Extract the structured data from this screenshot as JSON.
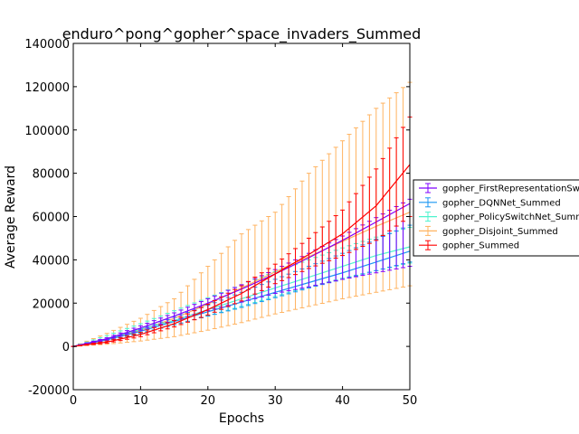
{
  "chart_data": {
    "type": "line",
    "title": "enduro^pong^gopher^space_invaders_Summed",
    "xlabel": "Epochs",
    "ylabel": "Average Reward",
    "xlim": [
      0,
      50
    ],
    "ylim": [
      -20000,
      140000
    ],
    "xticks": [
      0,
      10,
      20,
      30,
      40,
      50
    ],
    "yticks": [
      -20000,
      0,
      20000,
      40000,
      60000,
      80000,
      100000,
      120000,
      140000
    ],
    "grid": false,
    "legend_position": "right-outside",
    "series": [
      {
        "name": "gopher_FirstRepresentationSwitch_Summed",
        "color": "#8000ff",
        "x": [
          0,
          5,
          10,
          15,
          20,
          25,
          30,
          35,
          40,
          45,
          50
        ],
        "y": [
          0,
          3500,
          8500,
          14000,
          20000,
          26500,
          33500,
          41000,
          49000,
          57500,
          66000
        ],
        "err_low": [
          0,
          3000,
          7500,
          12000,
          16500,
          20500,
          24500,
          27500,
          31000,
          34000,
          37000
        ],
        "err_high": [
          0,
          4000,
          9500,
          15500,
          22000,
          28500,
          35500,
          43000,
          51000,
          59500,
          68000
        ]
      },
      {
        "name": "gopher_DQNNet_Summed",
        "color": "#1996f3",
        "x": [
          0,
          5,
          10,
          15,
          20,
          25,
          30,
          35,
          40,
          45,
          50
        ],
        "y": [
          0,
          3000,
          7000,
          11500,
          16000,
          20500,
          25000,
          29500,
          34000,
          39000,
          44000
        ],
        "err_low": [
          0,
          2500,
          6000,
          10000,
          14000,
          18000,
          22500,
          27000,
          31000,
          35000,
          39000
        ],
        "err_high": [
          0,
          3500,
          8000,
          13500,
          19000,
          25000,
          31000,
          37000,
          43000,
          49500,
          56000
        ]
      },
      {
        "name": "gopher_PolicySwitchNet_Summed",
        "color": "#4df3ce",
        "x": [
          0,
          5,
          10,
          15,
          20,
          25,
          30,
          35,
          40,
          45,
          50
        ],
        "y": [
          0,
          3500,
          8000,
          12000,
          17000,
          22000,
          27000,
          32000,
          37000,
          42000,
          46000
        ],
        "err_low": [
          0,
          2500,
          6000,
          10000,
          14000,
          18500,
          23000,
          27500,
          31500,
          35000,
          38500
        ],
        "err_high": [
          0,
          5000,
          10500,
          16500,
          22500,
          28500,
          34500,
          40000,
          45500,
          50500,
          55000
        ]
      },
      {
        "name": "gopher_Disjoint_Summed",
        "color": "#ffb360",
        "x": [
          0,
          5,
          10,
          15,
          20,
          25,
          30,
          35,
          40,
          45,
          50
        ],
        "y": [
          0,
          3000,
          7500,
          13000,
          19500,
          27000,
          34500,
          41500,
          48500,
          55500,
          62000
        ],
        "err_low": [
          0,
          1000,
          2500,
          4500,
          7500,
          11000,
          15000,
          18500,
          22000,
          25000,
          28000
        ],
        "err_high": [
          0,
          6000,
          13000,
          22000,
          37000,
          52000,
          62000,
          80000,
          95000,
          110000,
          122000
        ]
      },
      {
        "name": "gopher_Summed",
        "color": "#ff0000",
        "x": [
          0,
          5,
          10,
          15,
          20,
          25,
          30,
          35,
          40,
          45,
          50
        ],
        "y": [
          0,
          2000,
          5500,
          10500,
          17000,
          24500,
          33500,
          42500,
          52000,
          65000,
          84000
        ],
        "err_low": [
          0,
          1500,
          4500,
          9000,
          14500,
          21000,
          29000,
          36000,
          42000,
          49000,
          60000
        ],
        "err_high": [
          0,
          2500,
          6500,
          12000,
          19500,
          28000,
          38000,
          50000,
          63000,
          82000,
          106000
        ]
      }
    ]
  }
}
